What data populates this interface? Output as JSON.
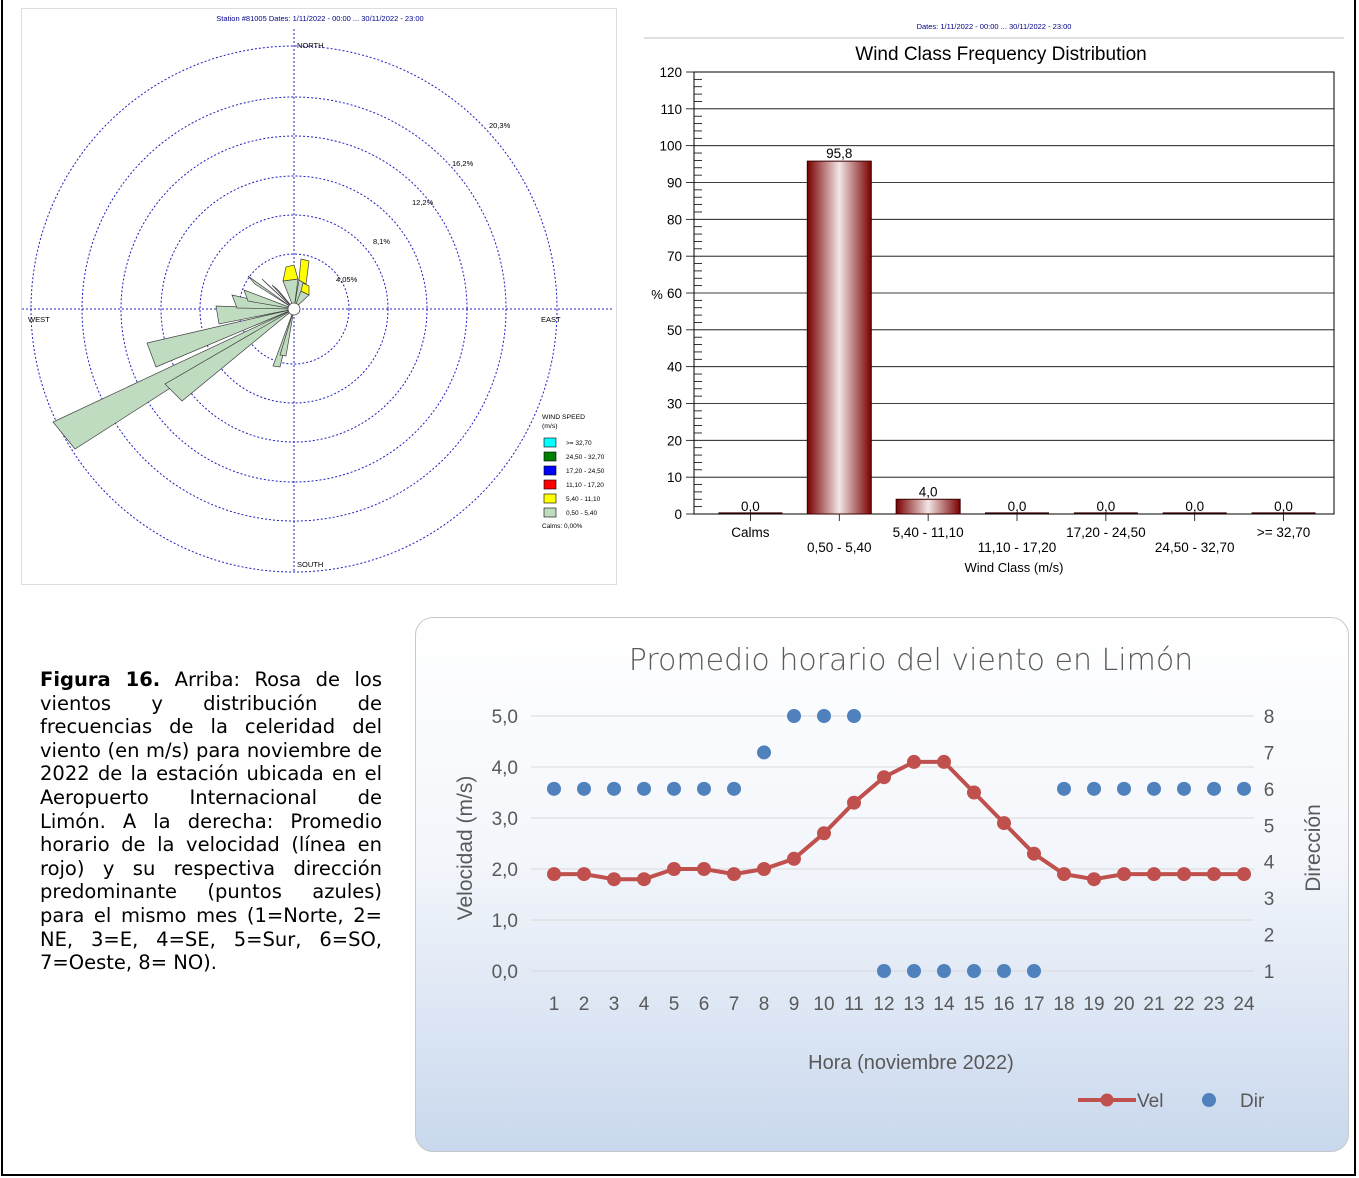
{
  "rose": {
    "header": "Station #81005  Dates: 1/11/2022 - 00:00 ... 30/11/2022 - 23:00",
    "directions": {
      "north": "NORTH",
      "south": "SOUTH",
      "east": "EAST",
      "west": "WEST"
    },
    "ring_labels": [
      "4,05%",
      "8,1%",
      "12,2%",
      "16,2%",
      "20,3%"
    ],
    "legend": {
      "title1": "WIND SPEED",
      "title2": "(m/s)",
      "items": [
        {
          "label": ">= 32,70",
          "color": "#00ffff"
        },
        {
          "label": "24,50 - 32,70",
          "color": "#008000"
        },
        {
          "label": "17,20 - 24,50",
          "color": "#0000ff"
        },
        {
          "label": "11,10 - 17,20",
          "color": "#ff0000"
        },
        {
          "label": "5,40 - 11,10",
          "color": "#ffff00"
        },
        {
          "label": "0,50 - 5,40",
          "color": "#c0dcc0"
        }
      ],
      "calms": "Calms: 0,00%"
    }
  },
  "chart_data": [
    {
      "type": "bar",
      "header": "Dates: 1/11/2022 - 00:00 ... 30/11/2022 - 23:00",
      "title": "Wind Class Frequency Distribution",
      "xlabel": "Wind Class (m/s)",
      "ylabel": "%",
      "ylim": [
        0,
        120
      ],
      "yticks": [
        "0",
        "10",
        "20",
        "30",
        "40",
        "50",
        "60",
        "70",
        "80",
        "90",
        "100",
        "110",
        "120"
      ],
      "categories": [
        "Calms",
        "0,50 - 5,40",
        "5,40 - 11,10",
        "11,10 - 17,20",
        "17,20 - 24,50",
        "24,50 - 32,70",
        ">= 32,70"
      ],
      "values": [
        0.0,
        95.8,
        4.0,
        0.0,
        0.0,
        0.0,
        0.0
      ],
      "value_labels": [
        "0,0",
        "95,8",
        "4,0",
        "0,0",
        "0,0",
        "0,0",
        "0,0"
      ],
      "bar_color": "#8b0000",
      "grid": true
    },
    {
      "type": "line",
      "title": "Promedio horario del viento en Limón",
      "xlabel": "Hora (noviembre 2022)",
      "ylabel": "Velocidad (m/s)",
      "y2label": "Dirección",
      "x": [
        1,
        2,
        3,
        4,
        5,
        6,
        7,
        8,
        9,
        10,
        11,
        12,
        13,
        14,
        15,
        16,
        17,
        18,
        19,
        20,
        21,
        22,
        23,
        24
      ],
      "ylim": [
        0,
        5
      ],
      "yticks": [
        "0,0",
        "1,0",
        "2,0",
        "3,0",
        "4,0",
        "5,0"
      ],
      "y2lim": [
        1,
        8
      ],
      "y2ticks": [
        "1",
        "2",
        "3",
        "4",
        "5",
        "6",
        "7",
        "8"
      ],
      "series": [
        {
          "name": "Vel",
          "axis": "left",
          "style": "line-markers",
          "color": "#c0504d",
          "values": [
            1.9,
            1.9,
            1.8,
            1.8,
            2.0,
            2.0,
            1.9,
            2.0,
            2.2,
            2.7,
            3.3,
            3.8,
            4.1,
            4.1,
            3.5,
            2.9,
            2.3,
            1.9,
            1.8,
            1.9,
            1.9,
            1.9,
            1.9,
            1.9
          ]
        },
        {
          "name": "Dir",
          "axis": "right",
          "style": "markers",
          "color": "#4f81bd",
          "values": [
            6,
            6,
            6,
            6,
            6,
            6,
            6,
            7,
            8,
            8,
            8,
            1,
            1,
            1,
            1,
            1,
            1,
            6,
            6,
            6,
            6,
            6,
            6,
            6
          ]
        }
      ],
      "grid": true,
      "legend": "bottom-right"
    }
  ],
  "caption": {
    "label": "Figura 16.",
    "text": " Arriba: Rosa de los vientos y distribución de frecuencias de la celeridad del viento (en m/s) para noviembre de 2022 de la estación ubicada en el Aeropuerto Internacional de Limón.  A la derecha: Promedio horario de la velocidad (línea en rojo) y su respectiva dirección predominante (puntos azules) para el mismo mes (1=Norte, 2= NE, 3=E, 4=SE, 5=Sur, 6=SO, 7=Oeste, 8= NO)."
  }
}
